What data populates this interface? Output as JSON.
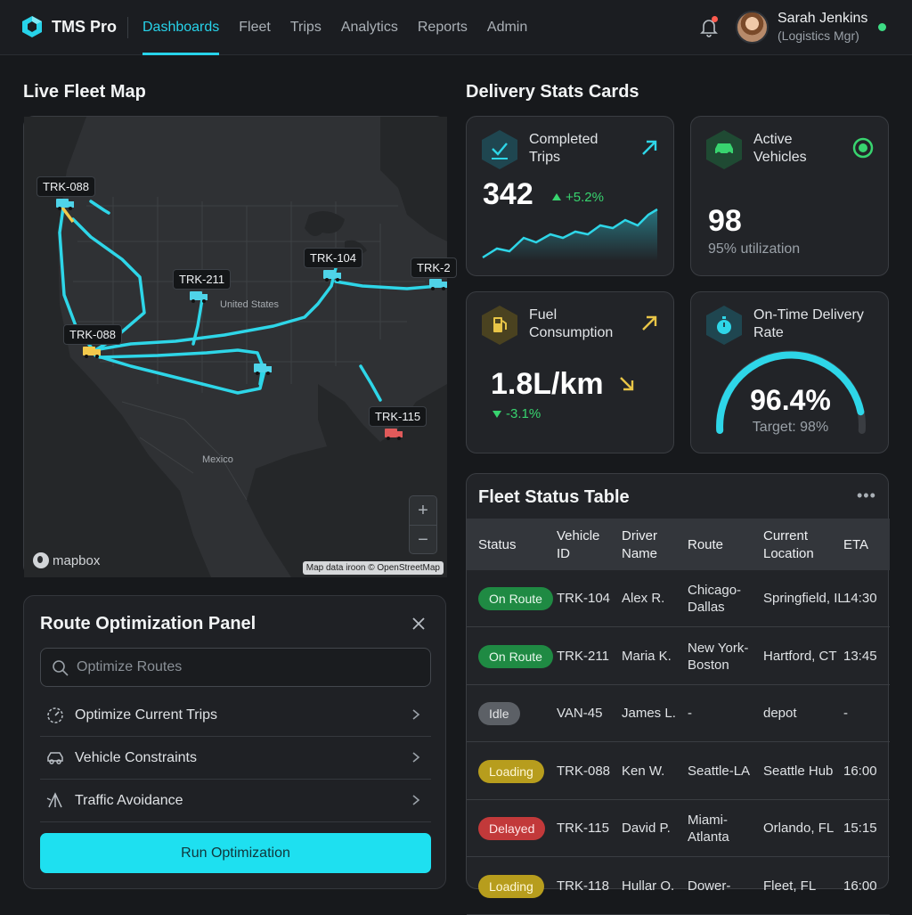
{
  "app": {
    "name": "TMS Pro"
  },
  "nav": [
    {
      "label": "Dashboards",
      "active": true
    },
    {
      "label": "Fleet"
    },
    {
      "label": "Trips"
    },
    {
      "label": "Analytics"
    },
    {
      "label": "Reports"
    },
    {
      "label": "Admin"
    }
  ],
  "user": {
    "name": "Sarah Jenkins",
    "role": "(Logistics Mgr)",
    "status_color": "#3ddc84"
  },
  "map": {
    "title": "Live Fleet Map",
    "labels": {
      "country_us": "United States",
      "country_mx": "Mexico"
    },
    "trucks": [
      {
        "id": "TRK-088",
        "color": "#4fd3e8"
      },
      {
        "id": "TRK-104",
        "color": "#4fd3e8"
      },
      {
        "id": "TRK-211",
        "color": "#4fd3e8"
      },
      {
        "id": "TRK-2",
        "color": "#4fd3e8"
      },
      {
        "id": "TRK-088",
        "color": "#f2c94c"
      },
      {
        "id": "TRK-115",
        "color": "#e05a5a"
      }
    ],
    "zoom_in": "+",
    "zoom_out": "−",
    "provider": "mapbox",
    "attribution": "Map data iroon © OpenStreetMap",
    "route_color": "#2ed6e8"
  },
  "route_panel": {
    "title": "Route Optimization Panel",
    "search_placeholder": "Optimize Routes",
    "items": [
      {
        "label": "Optimize Current Trips",
        "icon": "gauge-icon"
      },
      {
        "label": "Vehicle Constraints",
        "icon": "car-icon"
      },
      {
        "label": "Traffic Avoidance",
        "icon": "traffic-icon"
      }
    ],
    "run_label": "Run Optimization"
  },
  "stats": {
    "title": "Delivery Stats Cards",
    "completed": {
      "title_line1": "Completed",
      "title_line2": "Trips",
      "value": "342",
      "delta": "+5.2%"
    },
    "active": {
      "title_line1": "Active",
      "title_line2": "Vehicles",
      "value": "98",
      "sub": "95% utilization"
    },
    "fuel": {
      "title_line1": "Fuel",
      "title_line2": "Consumption",
      "value": "1.8L/km",
      "delta": "-3.1%"
    },
    "ontime": {
      "title_line1": "On-Time Delivery",
      "title_line2": "Rate",
      "value": "96.4%",
      "sub": "Target: 98%",
      "gauge_fraction": 0.92
    }
  },
  "fleet_table": {
    "title": "Fleet Status Table",
    "more": "•••",
    "columns": {
      "status": "Status",
      "vehicle_1": "Vehicle",
      "vehicle_2": "ID",
      "driver_1": "Driver",
      "driver_2": "Name",
      "route": "Route",
      "location_1": "Current",
      "location_2": "Location",
      "eta": "ETA"
    },
    "rows": [
      {
        "status": "On Route",
        "tone": "green",
        "vehicle": "TRK-104",
        "driver": "Alex R.",
        "route_1": "Chicago-",
        "route_2": "Dallas",
        "location": "Springfield, IL",
        "eta": "14:30"
      },
      {
        "status": "On Route",
        "tone": "green",
        "vehicle": "TRK-211",
        "driver": "Maria K.",
        "route_1": "New York-",
        "route_2": "Boston",
        "location": "Hartford, CT",
        "eta": "13:45"
      },
      {
        "status": "Idle",
        "tone": "grey",
        "vehicle": "VAN-45",
        "driver": "James L.",
        "route_1": "-",
        "route_2": "",
        "location": "depot",
        "eta": "-"
      },
      {
        "status": "Loading",
        "tone": "yellow",
        "vehicle": "TRK-088",
        "driver": "Ken W.",
        "route_1": "Seattle-LA",
        "route_2": "",
        "location": "Seattle Hub",
        "eta": "16:00"
      },
      {
        "status": "Delayed",
        "tone": "red",
        "vehicle": "TRK-115",
        "driver": "David P.",
        "route_1": "Miami-",
        "route_2": "Atlanta",
        "location": "Orlando, FL",
        "eta": "15:15"
      },
      {
        "status": "Loading",
        "tone": "yellow",
        "vehicle": "TRK-118",
        "driver": "Hullar O.",
        "route_1": "Dower-",
        "route_2": "",
        "location": "Fleet, FL",
        "eta": "16:00"
      }
    ]
  }
}
